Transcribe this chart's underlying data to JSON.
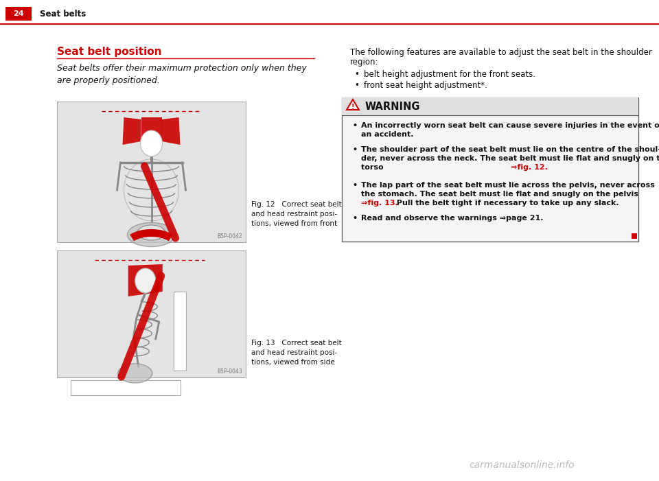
{
  "page_bg": "#ffffff",
  "header_red_bg": "#cc0000",
  "header_number": "24",
  "header_text": "Seat belts",
  "header_line_color": "#cc0000",
  "section_title": "Seat belt position",
  "section_title_color": "#cc0000",
  "section_underline_color": "#cc0000",
  "intro_text": "Seat belts offer their maximum protection only when they\nare properly positioned.",
  "right_intro_line1": "The following features are available to adjust the seat belt in the shoulder",
  "right_intro_line2": "region:",
  "bullet1": "belt height adjustment for the front seats.",
  "bullet2": "front seat height adjustment*.",
  "fig12_caption": "Fig. 12   Correct seat belt\nand head restraint posi-\ntions, viewed from front",
  "fig13_caption": "Fig. 13   Correct seat belt\nand head restraint posi-\ntions, viewed from side",
  "fig12_code": "B5P-0042",
  "fig13_code": "B5P-0043",
  "warning_title": "WARNING",
  "warning_box_bg": "#f5f5f5",
  "warning_header_bg": "#e0e0e0",
  "warning_box_border": "#555555",
  "wb1": "An incorrectly worn seat belt can cause severe injuries in the event of\nan accident.",
  "wb2a": "The shoulder part of the seat belt must lie on the centre of the shoul-\nder, never across the neck. The seat belt must lie flat and snugly on the\ntorso ",
  "wb2b": "⇒fig. 12.",
  "wb3a": "The lap part of the seat belt must lie across the pelvis, never across\nthe stomach. The seat belt must lie flat and snugly on the pelvis\n",
  "wb3b": "⇒fig. 13.",
  "wb3c": " Pull the belt tight if necessary to take up any slack.",
  "wb4": "Read and observe the warnings ⇒page 21.",
  "red_color": "#cc0000",
  "dark_text": "#111111",
  "watermark_text": "carmanualsonline.info",
  "image_bg": "#e4e4e4",
  "image_border": "#aaaaaa",
  "skel_color": "#888888",
  "skel_dark": "#555555"
}
